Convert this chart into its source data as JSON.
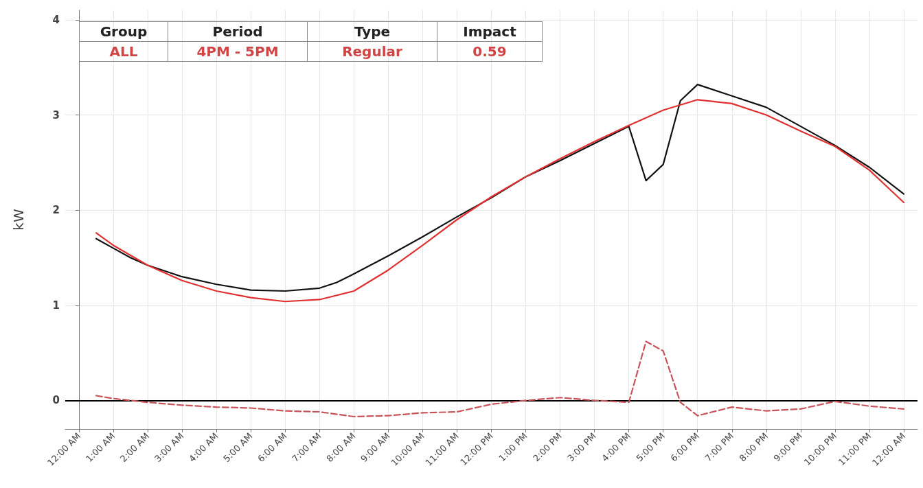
{
  "chart_data": {
    "type": "line",
    "ylabel": "kW",
    "annotations": [
      "Group",
      "Period",
      "Type",
      "Impact",
      "ALL",
      "4PM - 5PM",
      "Regular",
      "0.59"
    ],
    "xlim": [
      -0.4,
      24.4
    ],
    "xticks": [
      {
        "value": 0,
        "label": "12:00 AM"
      },
      {
        "value": 1,
        "label": "1:00 AM"
      },
      {
        "value": 2,
        "label": "2:00 AM"
      },
      {
        "value": 3,
        "label": "3:00 AM"
      },
      {
        "value": 4,
        "label": "4:00 AM"
      },
      {
        "value": 5,
        "label": "5:00 AM"
      },
      {
        "value": 6,
        "label": "6:00 AM"
      },
      {
        "value": 7,
        "label": "7:00 AM"
      },
      {
        "value": 8,
        "label": "8:00 AM"
      },
      {
        "value": 9,
        "label": "9:00 AM"
      },
      {
        "value": 10,
        "label": "10:00 AM"
      },
      {
        "value": 11,
        "label": "11:00 AM"
      },
      {
        "value": 12,
        "label": "12:00 PM"
      },
      {
        "value": 13,
        "label": "1:00 PM"
      },
      {
        "value": 14,
        "label": "2:00 PM"
      },
      {
        "value": 15,
        "label": "3:00 PM"
      },
      {
        "value": 16,
        "label": "4:00 PM"
      },
      {
        "value": 17,
        "label": "5:00 PM"
      },
      {
        "value": 18,
        "label": "6:00 PM"
      },
      {
        "value": 19,
        "label": "7:00 PM"
      },
      {
        "value": 20,
        "label": "8:00 PM"
      },
      {
        "value": 21,
        "label": "9:00 PM"
      },
      {
        "value": 22,
        "label": "10:00 PM"
      },
      {
        "value": 23,
        "label": "11:00 PM"
      },
      {
        "value": 24,
        "label": "12:00 AM"
      }
    ],
    "ylim": [
      -0.3,
      4.1
    ],
    "yticks": [
      0,
      1,
      2,
      3,
      4
    ],
    "grid": true,
    "marker": "none",
    "ref_lines": [
      {
        "axis": "y",
        "value": 0,
        "color": "#000000"
      }
    ],
    "series": [
      {
        "color": "#111111",
        "line_style": "solid",
        "x": [
          0.5,
          1,
          1.5,
          2,
          3,
          4,
          5,
          6,
          7,
          7.5,
          8,
          9,
          10,
          11,
          12,
          13,
          14,
          15,
          16,
          16.5,
          17,
          17.5,
          18,
          19,
          20,
          21,
          22,
          23,
          24
        ],
        "values": [
          1.7,
          1.6,
          1.5,
          1.42,
          1.3,
          1.22,
          1.16,
          1.15,
          1.18,
          1.24,
          1.33,
          1.52,
          1.72,
          1.93,
          2.13,
          2.35,
          2.52,
          2.7,
          2.88,
          2.31,
          2.48,
          3.15,
          3.32,
          3.2,
          3.08,
          2.88,
          2.68,
          2.45,
          2.17
        ]
      },
      {
        "color": "#e03030",
        "line_style": "solid",
        "x": [
          0.5,
          1,
          2,
          3,
          4,
          5,
          6,
          7,
          8,
          9,
          10,
          11,
          12,
          13,
          14,
          15,
          16,
          17,
          18,
          19,
          20,
          21,
          22,
          23,
          24
        ],
        "values": [
          1.76,
          1.63,
          1.42,
          1.26,
          1.15,
          1.08,
          1.04,
          1.06,
          1.15,
          1.37,
          1.63,
          1.9,
          2.14,
          2.35,
          2.54,
          2.72,
          2.89,
          3.05,
          3.16,
          3.12,
          3.0,
          2.83,
          2.67,
          2.42,
          2.08
        ]
      },
      {
        "color": "#c8545a",
        "line_style": "dashed",
        "x": [
          0.5,
          1,
          2,
          3,
          4,
          5,
          6,
          7,
          8,
          9,
          10,
          11,
          12,
          13,
          14,
          15,
          16,
          16.5,
          17,
          17.5,
          18,
          19,
          20,
          21,
          22,
          23,
          24
        ],
        "values": [
          0.05,
          0.02,
          -0.02,
          -0.05,
          -0.07,
          -0.08,
          -0.11,
          -0.12,
          -0.17,
          -0.16,
          -0.13,
          -0.12,
          -0.04,
          0.0,
          0.03,
          0.0,
          -0.02,
          0.62,
          0.52,
          -0.02,
          -0.16,
          -0.07,
          -0.11,
          -0.09,
          -0.01,
          -0.06,
          -0.09
        ]
      }
    ]
  }
}
